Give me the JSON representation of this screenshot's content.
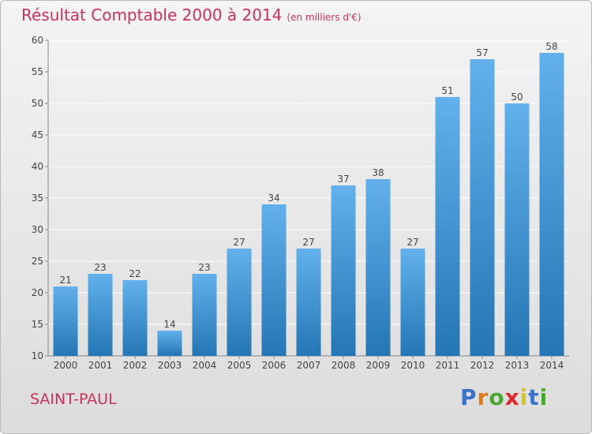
{
  "header": {
    "title": "Résultat Comptable 2000 à 2014",
    "unit": "(en milliers d'€)"
  },
  "footer": {
    "city": "SAINT-PAUL",
    "logo_letters": [
      "P",
      "r",
      "o",
      "x",
      "i",
      "t",
      "i"
    ],
    "logo_colors": [
      "#3a73c8",
      "#e07a1a",
      "#4aa832",
      "#e0282a",
      "#d8c61a",
      "#3a73c8",
      "#4aa832"
    ]
  },
  "colors": {
    "bar_top": "#62b1ec",
    "bar_bottom": "#2476b4",
    "grid": "#ffffff",
    "axis": "#888888",
    "text": "#444444",
    "accent": "#c8325a"
  },
  "chart_data": {
    "type": "bar",
    "categories": [
      "2000",
      "2001",
      "2002",
      "2003",
      "2004",
      "2005",
      "2006",
      "2007",
      "2008",
      "2009",
      "2010",
      "2011",
      "2012",
      "2013",
      "2014"
    ],
    "values": [
      21,
      23,
      22,
      14,
      23,
      27,
      34,
      27,
      37,
      38,
      27,
      51,
      57,
      50,
      58
    ],
    "ylim": [
      10,
      60
    ],
    "yticks": [
      10,
      15,
      20,
      25,
      30,
      35,
      40,
      45,
      50,
      55,
      60
    ],
    "grid": true
  }
}
